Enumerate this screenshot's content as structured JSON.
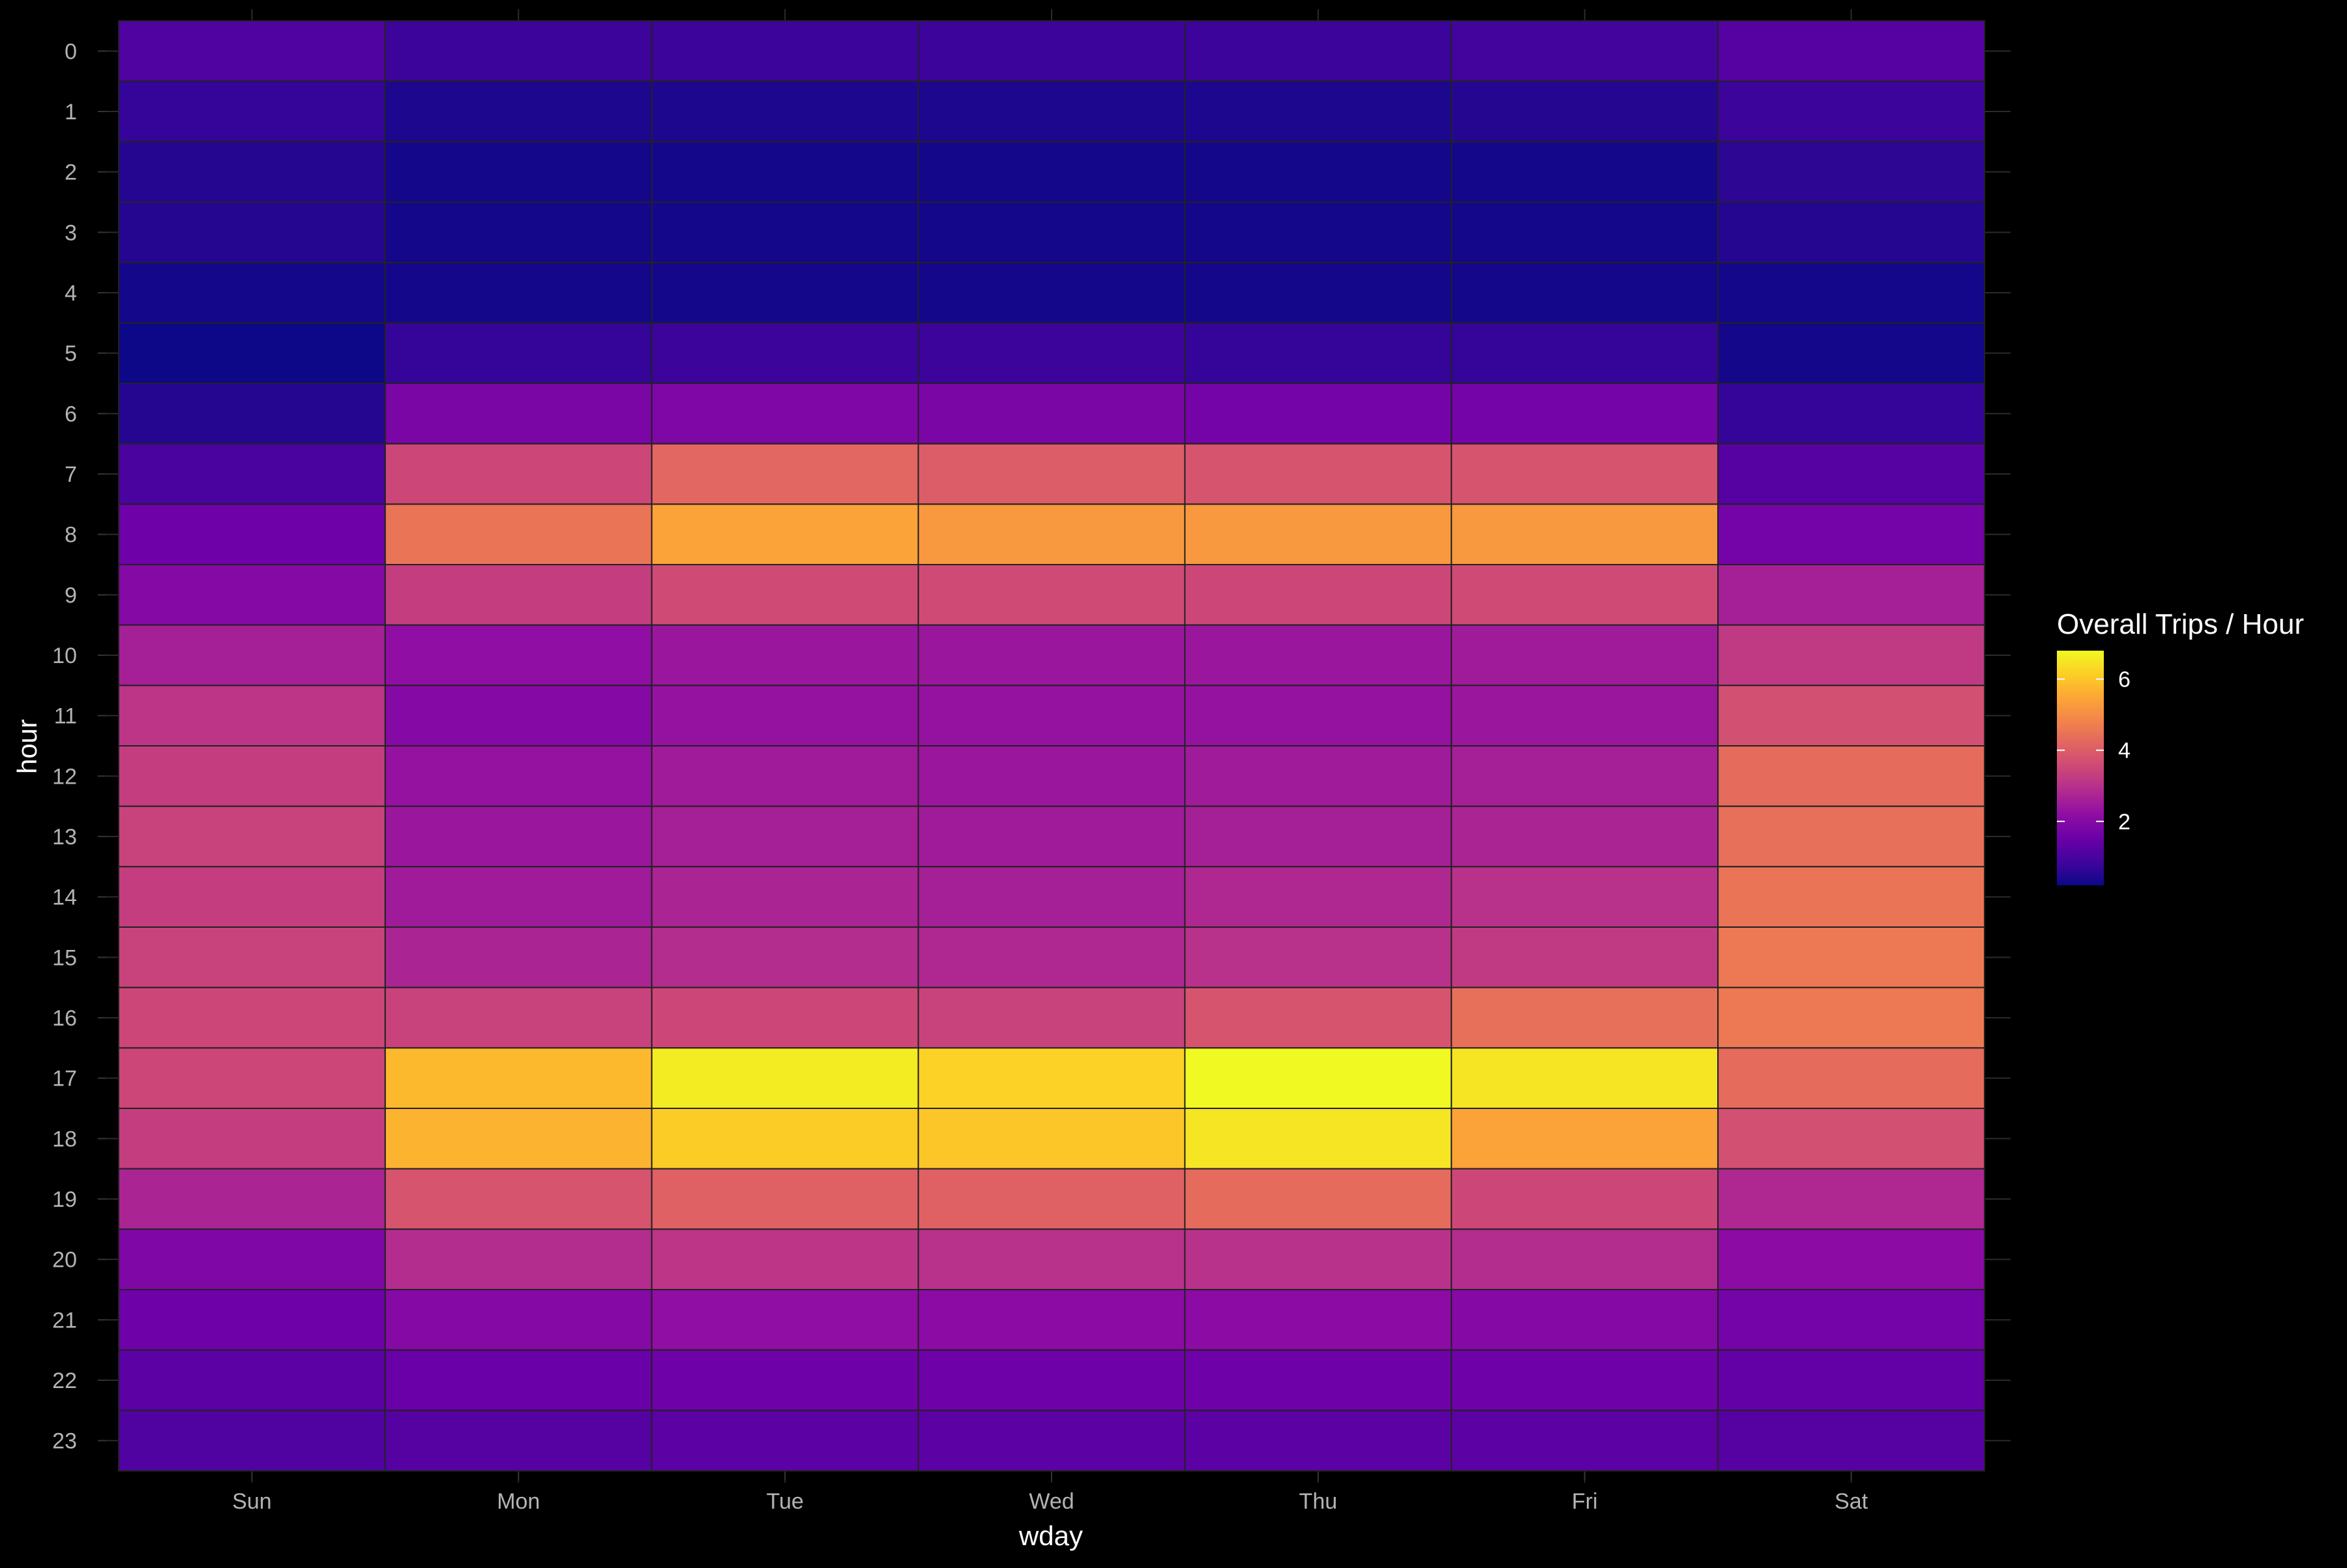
{
  "chart_data": {
    "type": "heatmap",
    "title": "",
    "xlabel": "wday",
    "ylabel": "hour",
    "x": [
      "Sun",
      "Mon",
      "Tue",
      "Wed",
      "Thu",
      "Fri",
      "Sat"
    ],
    "y": [
      "0",
      "1",
      "2",
      "3",
      "4",
      "5",
      "6",
      "7",
      "8",
      "9",
      "10",
      "11",
      "12",
      "13",
      "14",
      "15",
      "16",
      "17",
      "18",
      "19",
      "20",
      "21",
      "22",
      "23"
    ],
    "values": [
      [
        1.1,
        0.8,
        0.8,
        0.8,
        0.8,
        0.9,
        1.2
      ],
      [
        0.7,
        0.4,
        0.4,
        0.4,
        0.4,
        0.5,
        0.8
      ],
      [
        0.5,
        0.3,
        0.3,
        0.3,
        0.3,
        0.3,
        0.6
      ],
      [
        0.5,
        0.3,
        0.3,
        0.3,
        0.3,
        0.3,
        0.5
      ],
      [
        0.3,
        0.3,
        0.3,
        0.3,
        0.3,
        0.3,
        0.3
      ],
      [
        0.2,
        0.7,
        0.8,
        0.8,
        0.7,
        0.7,
        0.3
      ],
      [
        0.5,
        1.8,
        1.9,
        1.8,
        1.7,
        1.7,
        0.7
      ],
      [
        1.0,
        3.5,
        4.2,
        4.0,
        3.8,
        3.8,
        1.2
      ],
      [
        1.6,
        4.5,
        5.4,
        5.2,
        5.2,
        5.2,
        1.7
      ],
      [
        2.0,
        3.3,
        3.6,
        3.6,
        3.5,
        3.6,
        2.6
      ],
      [
        2.6,
        2.2,
        2.4,
        2.4,
        2.4,
        2.5,
        3.2
      ],
      [
        3.1,
        2.0,
        2.3,
        2.3,
        2.3,
        2.4,
        3.7
      ],
      [
        3.3,
        2.3,
        2.5,
        2.4,
        2.5,
        2.6,
        4.3
      ],
      [
        3.4,
        2.4,
        2.6,
        2.5,
        2.6,
        2.7,
        4.4
      ],
      [
        3.3,
        2.5,
        2.7,
        2.6,
        2.8,
        3.0,
        4.5
      ],
      [
        3.4,
        2.7,
        2.9,
        2.8,
        3.0,
        3.2,
        4.6
      ],
      [
        3.5,
        3.4,
        3.5,
        3.4,
        3.8,
        4.4,
        4.6
      ],
      [
        3.5,
        5.8,
        6.6,
        6.2,
        6.8,
        6.5,
        4.3
      ],
      [
        3.3,
        5.7,
        6.1,
        6.0,
        6.5,
        5.4,
        3.7
      ],
      [
        2.7,
        3.8,
        4.1,
        4.1,
        4.3,
        3.5,
        2.8
      ],
      [
        1.9,
        2.9,
        3.1,
        3.0,
        3.0,
        2.9,
        2.1
      ],
      [
        1.6,
        2.0,
        2.2,
        2.1,
        2.1,
        2.0,
        1.7
      ],
      [
        1.3,
        1.5,
        1.6,
        1.6,
        1.6,
        1.6,
        1.4
      ],
      [
        1.1,
        1.2,
        1.3,
        1.3,
        1.3,
        1.3,
        1.2
      ]
    ],
    "colorbar": {
      "title": "Overall Trips / Hour",
      "min": 0.2,
      "max": 6.8,
      "ticks": [
        2,
        4,
        6
      ],
      "palette": "plasma"
    },
    "grid": true,
    "legend_position": "right",
    "colors": {
      "background": "#000000",
      "panel": "#000000",
      "tile_border": "#222222"
    }
  }
}
